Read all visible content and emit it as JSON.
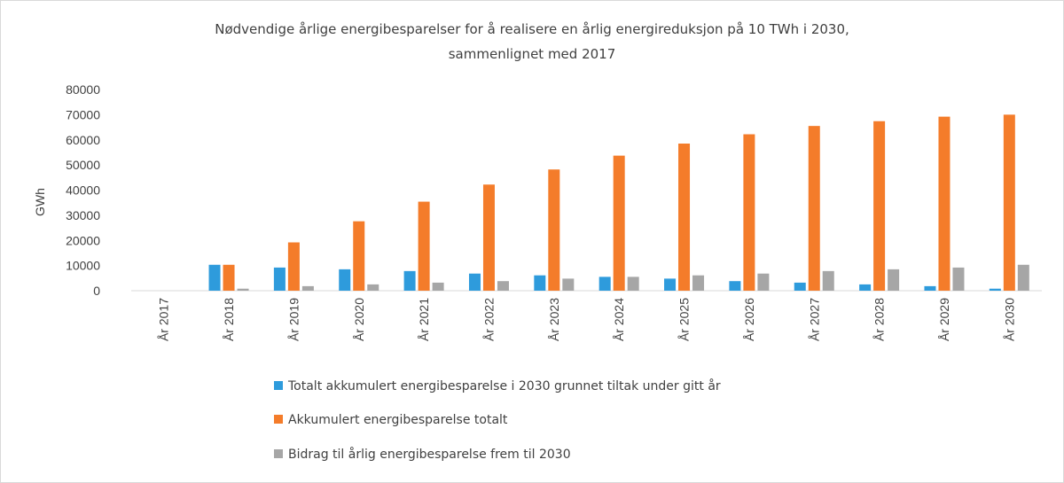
{
  "chart_data": {
    "type": "bar",
    "title": "Nødvendige årlige energibesparelser for å realisere en årlig energireduksjon på 10 TWh i 2030,",
    "subtitle": "sammenlignet med 2017",
    "xlabel": "",
    "ylabel": "GWh",
    "ylim": [
      0,
      80000
    ],
    "yticks": [
      "0",
      "10000",
      "20000",
      "30000",
      "40000",
      "50000",
      "60000",
      "70000",
      "80000"
    ],
    "grid": false,
    "legend_position": "bottom",
    "categories": [
      "År 2017",
      "År 2018",
      "År 2019",
      "År 2020",
      "År 2021",
      "År 2022",
      "År 2023",
      "År 2024",
      "År 2025",
      "År 2026",
      "År 2027",
      "År 2028",
      "År 2029",
      "År 2030"
    ],
    "series": [
      {
        "name": "Totalt akkumulert energibesparelse i 2030 grunnet tiltak under gitt år",
        "color": "#2e9bdc",
        "values": [
          0,
          10300,
          9200,
          8500,
          7800,
          6800,
          6100,
          5500,
          4800,
          3800,
          3200,
          2500,
          1800,
          800
        ]
      },
      {
        "name": "Akkumulert energibesparelse totalt",
        "color": "#f47c2a",
        "values": [
          0,
          10300,
          19200,
          27600,
          35400,
          42200,
          48200,
          53700,
          58500,
          62200,
          65500,
          67400,
          69200,
          70000
        ]
      },
      {
        "name": "Bidrag til årlig energibesparelse frem til 2030",
        "color": "#a6a6a6",
        "values": [
          0,
          800,
          1800,
          2500,
          3200,
          3800,
          4800,
          5500,
          6100,
          6800,
          7800,
          8500,
          9200,
          10300
        ]
      }
    ]
  }
}
